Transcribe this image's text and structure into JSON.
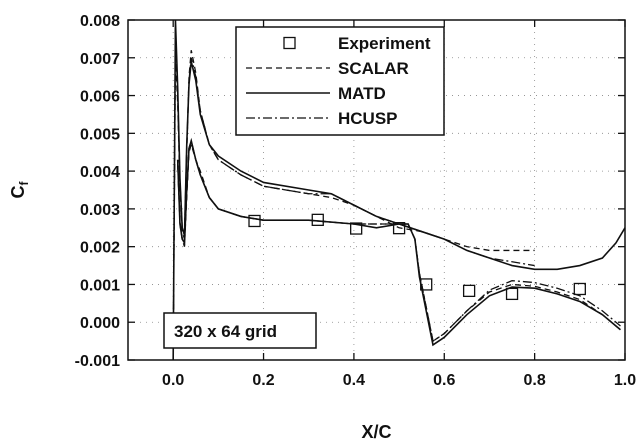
{
  "chart_data": {
    "type": "line",
    "title": "",
    "xlabel": "X/C",
    "ylabel": "Cf",
    "xlim": [
      -0.1,
      1.0
    ],
    "ylim": [
      -0.001,
      0.008
    ],
    "x_ticks": [
      0.0,
      0.2,
      0.4,
      0.6,
      0.8,
      1.0
    ],
    "x_tick_labels": [
      "0.0",
      "0.2",
      "0.4",
      "0.6",
      "0.8",
      "1.0"
    ],
    "y_ticks": [
      -0.001,
      0.0,
      0.001,
      0.002,
      0.003,
      0.004,
      0.005,
      0.006,
      0.007,
      0.008
    ],
    "y_tick_labels": [
      "-0.001",
      "0.000",
      "0.001",
      "0.002",
      "0.003",
      "0.004",
      "0.005",
      "0.006",
      "0.007",
      "0.008"
    ],
    "grid": "dotted",
    "legend_position": "top-center",
    "annotation": "320 x 64 grid",
    "series": [
      {
        "name": "Experiment",
        "style": "square-markers",
        "color": "#111111",
        "x": [
          0.18,
          0.32,
          0.405,
          0.5,
          0.56,
          0.655,
          0.75,
          0.9
        ],
        "y": [
          0.00268,
          0.00271,
          0.00248,
          0.00249,
          0.001,
          0.00083,
          0.00075,
          0.00088
        ]
      },
      {
        "name": "SCALAR",
        "style": "dashed",
        "color": "#111111",
        "upper": {
          "x": [
            0.0,
            0.005,
            0.01,
            0.015,
            0.02,
            0.025,
            0.03,
            0.035,
            0.04,
            0.05,
            0.06,
            0.08,
            0.1,
            0.15,
            0.2,
            0.3,
            0.35,
            0.4,
            0.45,
            0.5,
            0.55,
            0.6,
            0.65,
            0.7,
            0.75,
            0.8
          ],
          "y": [
            -0.001,
            0.007,
            0.0058,
            0.0035,
            0.0024,
            0.0022,
            0.0045,
            0.0065,
            0.0072,
            0.0066,
            0.0056,
            0.0047,
            0.0043,
            0.0039,
            0.0036,
            0.0034,
            0.0033,
            0.0031,
            0.0028,
            0.0025,
            0.0024,
            0.0022,
            0.002,
            0.0019,
            0.0019,
            0.0019
          ]
        },
        "lower": {
          "x": [
            0.01,
            0.015,
            0.02,
            0.025,
            0.03,
            0.035,
            0.04,
            0.05,
            0.06,
            0.08,
            0.1,
            0.15,
            0.2,
            0.3,
            0.4,
            0.45,
            0.5,
            0.52,
            0.535,
            0.545,
            0.56,
            0.575,
            0.6,
            0.65,
            0.7,
            0.75,
            0.8,
            0.85,
            0.9,
            0.95,
            0.98,
            0.99
          ],
          "y": [
            0.0042,
            0.0027,
            0.0022,
            0.002,
            0.0033,
            0.0045,
            0.0047,
            0.0043,
            0.004,
            0.0033,
            0.003,
            0.0028,
            0.0027,
            0.0027,
            0.0026,
            0.0026,
            0.0026,
            0.0026,
            0.0022,
            0.0013,
            0.0004,
            -0.0005,
            -0.0003,
            0.0003,
            0.0008,
            0.001,
            0.00095,
            0.0008,
            0.0006,
            0.0002,
            -0.0001,
            -0.0002
          ]
        }
      },
      {
        "name": "MATD",
        "style": "solid",
        "color": "#111111",
        "upper": {
          "x": [
            0.0,
            0.005,
            0.01,
            0.015,
            0.02,
            0.025,
            0.03,
            0.035,
            0.04,
            0.05,
            0.06,
            0.08,
            0.1,
            0.15,
            0.2,
            0.3,
            0.35,
            0.4,
            0.45,
            0.5,
            0.55,
            0.6,
            0.65,
            0.7,
            0.75,
            0.8,
            0.85,
            0.9,
            0.95,
            0.98,
            1.0
          ],
          "y": [
            -0.001,
            0.008,
            0.0062,
            0.0038,
            0.0025,
            0.0023,
            0.0047,
            0.0063,
            0.0069,
            0.0064,
            0.0055,
            0.0047,
            0.0044,
            0.004,
            0.0037,
            0.0035,
            0.0034,
            0.0031,
            0.0028,
            0.0026,
            0.0024,
            0.0022,
            0.0019,
            0.0017,
            0.0015,
            0.0014,
            0.0014,
            0.0015,
            0.0017,
            0.0021,
            0.0025
          ]
        },
        "lower": {
          "x": [
            0.01,
            0.015,
            0.02,
            0.025,
            0.03,
            0.035,
            0.04,
            0.05,
            0.06,
            0.08,
            0.1,
            0.15,
            0.2,
            0.3,
            0.4,
            0.45,
            0.5,
            0.52,
            0.535,
            0.545,
            0.56,
            0.575,
            0.6,
            0.65,
            0.7,
            0.75,
            0.8,
            0.85,
            0.9,
            0.95,
            0.98,
            0.99
          ],
          "y": [
            0.0043,
            0.0026,
            0.0022,
            0.0021,
            0.0035,
            0.0046,
            0.0048,
            0.0043,
            0.0039,
            0.0033,
            0.003,
            0.0028,
            0.0027,
            0.0027,
            0.0026,
            0.0025,
            0.0026,
            0.0026,
            0.0022,
            0.0012,
            0.0003,
            -0.0006,
            -0.0004,
            0.0002,
            0.0007,
            0.00093,
            0.0009,
            0.00075,
            0.00055,
            0.0002,
            -0.0001,
            -0.0002
          ]
        }
      },
      {
        "name": "HCUSP",
        "style": "dash-dot",
        "color": "#111111",
        "upper": {
          "x": [
            0.0,
            0.005,
            0.01,
            0.015,
            0.02,
            0.025,
            0.03,
            0.035,
            0.04,
            0.05,
            0.06,
            0.08,
            0.1,
            0.15,
            0.2,
            0.3,
            0.35,
            0.4,
            0.45,
            0.5,
            0.55,
            0.6,
            0.65,
            0.7,
            0.75,
            0.8
          ],
          "y": [
            -0.001,
            0.0078,
            0.006,
            0.0037,
            0.0025,
            0.0023,
            0.0046,
            0.0064,
            0.007,
            0.0065,
            0.0056,
            0.0047,
            0.0043,
            0.0039,
            0.0036,
            0.0034,
            0.0034,
            0.0031,
            0.0028,
            0.0026,
            0.0024,
            0.0022,
            0.0019,
            0.0017,
            0.0016,
            0.0015
          ]
        },
        "lower": {
          "x": [
            0.01,
            0.015,
            0.02,
            0.025,
            0.03,
            0.035,
            0.04,
            0.05,
            0.06,
            0.08,
            0.1,
            0.15,
            0.2,
            0.3,
            0.4,
            0.45,
            0.5,
            0.52,
            0.535,
            0.545,
            0.56,
            0.575,
            0.6,
            0.65,
            0.7,
            0.75,
            0.8,
            0.85,
            0.9,
            0.95,
            0.98,
            0.99
          ],
          "y": [
            0.0042,
            0.0026,
            0.0022,
            0.0021,
            0.0034,
            0.0046,
            0.0048,
            0.0043,
            0.0039,
            0.0033,
            0.003,
            0.0028,
            0.0027,
            0.0027,
            0.0026,
            0.0026,
            0.0026,
            0.0026,
            0.0022,
            0.0013,
            0.0004,
            -0.0005,
            -0.0003,
            0.0003,
            0.00085,
            0.0011,
            0.00105,
            0.0009,
            0.0007,
            0.0003,
            0.0,
            -0.0001
          ]
        }
      }
    ]
  }
}
